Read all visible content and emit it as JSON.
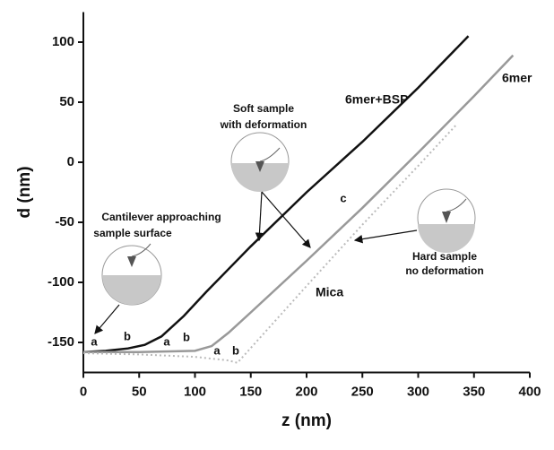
{
  "chart_data": {
    "type": "line",
    "xlabel": "z (nm)",
    "ylabel": "d (nm)",
    "xlim": [
      0,
      400
    ],
    "ylim": [
      -175,
      125
    ],
    "xticks": [
      0,
      50,
      100,
      150,
      200,
      250,
      300,
      350,
      400
    ],
    "yticks": [
      -150,
      -100,
      -50,
      0,
      50,
      100
    ],
    "series": [
      {
        "name": "6mer+BSP",
        "color": "#111111",
        "style": "solid",
        "x": [
          0,
          20,
          40,
          55,
          70,
          90,
          110,
          150,
          200,
          250,
          300,
          345
        ],
        "values": [
          -158,
          -157,
          -155,
          -152,
          -145,
          -128,
          -108,
          -70,
          -25,
          17,
          62,
          105
        ]
      },
      {
        "name": "6mer",
        "color": "#999999",
        "style": "solid",
        "x": [
          0,
          50,
          100,
          115,
          130,
          150,
          200,
          250,
          300,
          350,
          385
        ],
        "values": [
          -158,
          -158,
          -157,
          -153,
          -142,
          -125,
          -82,
          -38,
          8,
          55,
          89
        ]
      },
      {
        "name": "Mica",
        "color": "#bbbbbb",
        "style": "dotted",
        "x": [
          0,
          50,
          100,
          130,
          138,
          200,
          250,
          300,
          335
        ],
        "values": [
          -159,
          -160,
          -162,
          -165,
          -167,
          -103,
          -52,
          -3,
          32
        ]
      }
    ],
    "annotations": [
      "Soft sample",
      "with deformation",
      "Cantilever approaching",
      "sample surface",
      "Hard sample",
      "no deformation",
      "c",
      "a",
      "b",
      "a",
      "b",
      "a",
      "b"
    ]
  }
}
